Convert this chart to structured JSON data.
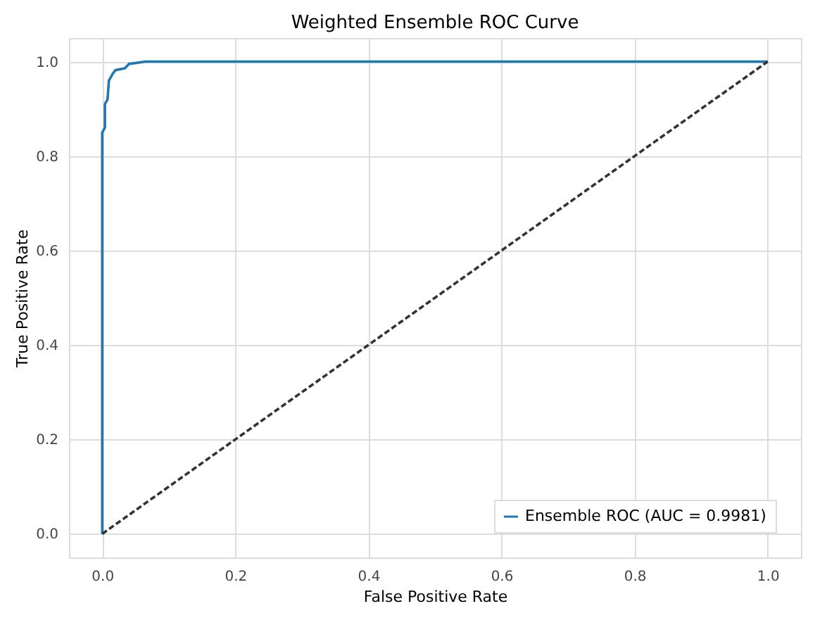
{
  "chart_data": {
    "type": "line",
    "title": "Weighted Ensemble ROC Curve",
    "xlabel": "False Positive Rate",
    "ylabel": "True Positive Rate",
    "xlim": [
      -0.05,
      1.05
    ],
    "ylim": [
      -0.05,
      1.05
    ],
    "xticks": [
      {
        "value": 0,
        "label": "0.0"
      },
      0.2,
      0.4,
      0.6,
      0.8,
      {
        "value": 1,
        "label": "1.0"
      }
    ],
    "yticks": [
      {
        "value": 0,
        "label": "0.0"
      },
      0.2,
      0.4,
      0.6,
      0.8,
      {
        "value": 1,
        "label": "1.0"
      }
    ],
    "grid": true,
    "legend": "bottom right",
    "series": [
      {
        "name": "Ensemble ROC (AUC = 0.9981)",
        "color": "#1f77b4",
        "line_style": "solid",
        "x": [
          0,
          0,
          0.004,
          0.004,
          0.008,
          0.01,
          0.016,
          0.02,
          0.034,
          0.04,
          0.065,
          1
        ],
        "values": [
          0,
          0.85,
          0.86,
          0.91,
          0.92,
          0.96,
          0.975,
          0.982,
          0.986,
          0.995,
          1.0,
          1.0
        ]
      },
      {
        "color": "#333333",
        "line_style": "dashed",
        "x": [
          0,
          1
        ],
        "values": [
          0,
          1
        ]
      }
    ]
  }
}
